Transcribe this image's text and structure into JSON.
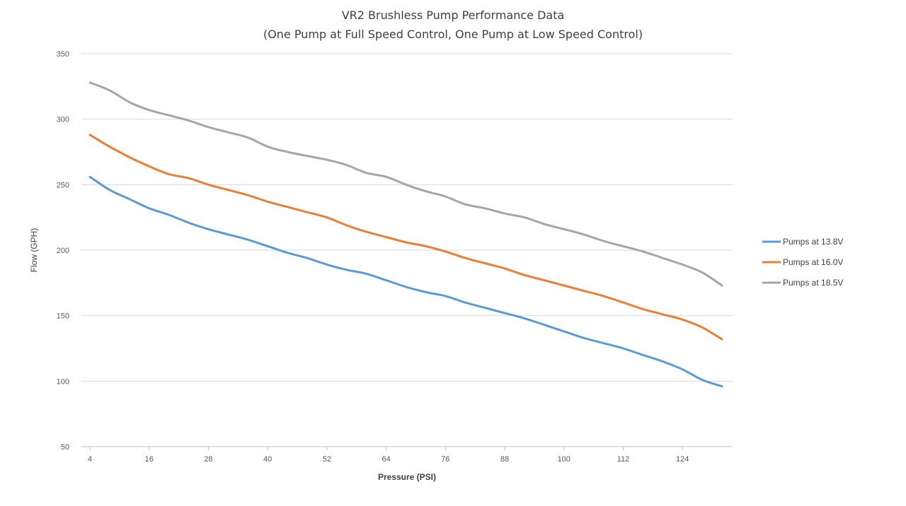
{
  "chart_data": {
    "type": "line",
    "title": "VR2 Brushless Pump Performance Data",
    "subtitle": "(One Pump at Full Speed Control, One Pump at Low Speed Control)",
    "xlabel": "Pressure (PSI)",
    "ylabel": "Flow (GPH)",
    "xlim": [
      4,
      132
    ],
    "ylim": [
      50,
      350
    ],
    "x_tick_labels": [
      "4",
      "16",
      "28",
      "40",
      "52",
      "64",
      "76",
      "88",
      "100",
      "112",
      "124"
    ],
    "y_tick_labels": [
      "350",
      "300",
      "250",
      "200",
      "150",
      "100",
      "50"
    ],
    "grid": "horizontal",
    "legend_position": "right",
    "x": [
      4,
      8,
      12,
      16,
      20,
      24,
      28,
      32,
      36,
      40,
      44,
      48,
      52,
      56,
      60,
      64,
      68,
      72,
      76,
      80,
      84,
      88,
      92,
      96,
      100,
      104,
      108,
      112,
      116,
      120,
      124,
      128,
      132
    ],
    "series": [
      {
        "name": "Pumps at 13.8V",
        "color": "#5b9bd5",
        "values": [
          256,
          246,
          239,
          232,
          227,
          221,
          216,
          212,
          208,
          203,
          198,
          194,
          189,
          185,
          182,
          177,
          172,
          168,
          165,
          160,
          156,
          152,
          148,
          143,
          138,
          133,
          129,
          125,
          120,
          115,
          109,
          101,
          96
        ]
      },
      {
        "name": "Pumps at 16.0V",
        "color": "#ed7d31",
        "values": [
          288,
          279,
          271,
          264,
          258,
          255,
          250,
          246,
          242,
          237,
          233,
          229,
          225,
          219,
          214,
          210,
          206,
          203,
          199,
          194,
          190,
          186,
          181,
          177,
          173,
          169,
          165,
          160,
          155,
          151,
          147,
          141,
          132
        ]
      },
      {
        "name": "Pumps at 18.5V",
        "color": "#a5a5a5",
        "values": [
          328,
          322,
          313,
          307,
          303,
          299,
          294,
          290,
          286,
          279,
          275,
          272,
          269,
          265,
          259,
          256,
          250,
          245,
          241,
          235,
          232,
          228,
          225,
          220,
          216,
          212,
          207,
          203,
          199,
          194,
          189,
          183,
          173
        ]
      }
    ]
  }
}
